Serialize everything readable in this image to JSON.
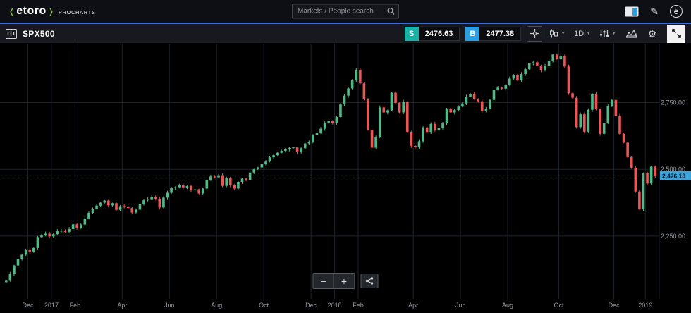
{
  "header": {
    "logo_text": "etoro",
    "logo_sub": "PROCHARTS",
    "search_placeholder": "Markets / People search"
  },
  "toolbar": {
    "symbol": "SPX500",
    "sell_label": "S",
    "sell_price": "2476.63",
    "buy_label": "B",
    "buy_price": "2477.38",
    "timeframe": "1D"
  },
  "zoom_controls": {
    "minus": "−",
    "plus": "+"
  },
  "colors": {
    "accent_blue": "#2f6fe8",
    "sell_teal": "#18b3a6",
    "buy_blue": "#2d9fe0",
    "candle_up": "#53b987",
    "candle_down": "#eb5757",
    "grid": "#1d222a",
    "axis_text": "#949aa3",
    "price_tag": "#3aa3dc"
  },
  "chart_data": {
    "type": "candlestick",
    "symbol": "SPX500",
    "timeframe": "1D",
    "y_ticks": [
      {
        "label": "2,750.00",
        "value": 2750
      },
      {
        "label": "2,500.00",
        "value": 2500
      },
      {
        "label": "2,250.00",
        "value": 2250
      }
    ],
    "y_domain": [
      2020,
      2960
    ],
    "current_price": 2476.18,
    "current_price_label": "2,476.18",
    "x_ticks": [
      {
        "label": "Dec",
        "i": 6
      },
      {
        "label": "2017",
        "i": 12
      },
      {
        "label": "Feb",
        "i": 18
      },
      {
        "label": "Apr",
        "i": 30
      },
      {
        "label": "Jun",
        "i": 42
      },
      {
        "label": "Aug",
        "i": 54
      },
      {
        "label": "Oct",
        "i": 66
      },
      {
        "label": "Dec",
        "i": 78
      },
      {
        "label": "2018",
        "i": 84
      },
      {
        "label": "Feb",
        "i": 90
      },
      {
        "label": "Apr",
        "i": 104
      },
      {
        "label": "Jun",
        "i": 116
      },
      {
        "label": "Aug",
        "i": 128
      },
      {
        "label": "Oct",
        "i": 141
      },
      {
        "label": "Dec",
        "i": 155
      },
      {
        "label": "2019",
        "i": 163
      }
    ],
    "closes": [
      2085,
      2108,
      2140,
      2164,
      2180,
      2198,
      2192,
      2205,
      2246,
      2253,
      2259,
      2249,
      2257,
      2268,
      2270,
      2266,
      2276,
      2294,
      2280,
      2293,
      2316,
      2337,
      2351,
      2364,
      2375,
      2383,
      2365,
      2373,
      2348,
      2362,
      2358,
      2355,
      2338,
      2349,
      2371,
      2384,
      2388,
      2397,
      2390,
      2357,
      2394,
      2412,
      2430,
      2433,
      2440,
      2432,
      2437,
      2423,
      2425,
      2410,
      2428,
      2460,
      2473,
      2470,
      2478,
      2438,
      2468,
      2441,
      2428,
      2453,
      2465,
      2461,
      2488,
      2500,
      2507,
      2519,
      2529,
      2545,
      2553,
      2562,
      2569,
      2575,
      2580,
      2582,
      2564,
      2579,
      2597,
      2602,
      2629,
      2636,
      2652,
      2675,
      2681,
      2674,
      2696,
      2743,
      2776,
      2803,
      2833,
      2873,
      2822,
      2762,
      2648,
      2581,
      2620,
      2732,
      2713,
      2721,
      2787,
      2749,
      2713,
      2753,
      2641,
      2588,
      2582,
      2605,
      2657,
      2640,
      2670,
      2648,
      2655,
      2672,
      2728,
      2713,
      2722,
      2735,
      2747,
      2772,
      2782,
      2763,
      2755,
      2718,
      2726,
      2760,
      2798,
      2806,
      2802,
      2816,
      2840,
      2853,
      2833,
      2857,
      2875,
      2897,
      2901,
      2889,
      2871,
      2888,
      2905,
      2930,
      2914,
      2924,
      2885,
      2785,
      2768,
      2658,
      2706,
      2641,
      2723,
      2781,
      2726,
      2633,
      2673,
      2737,
      2760,
      2700,
      2633,
      2600,
      2546,
      2506,
      2417,
      2351,
      2486,
      2447,
      2510,
      2476
    ]
  }
}
